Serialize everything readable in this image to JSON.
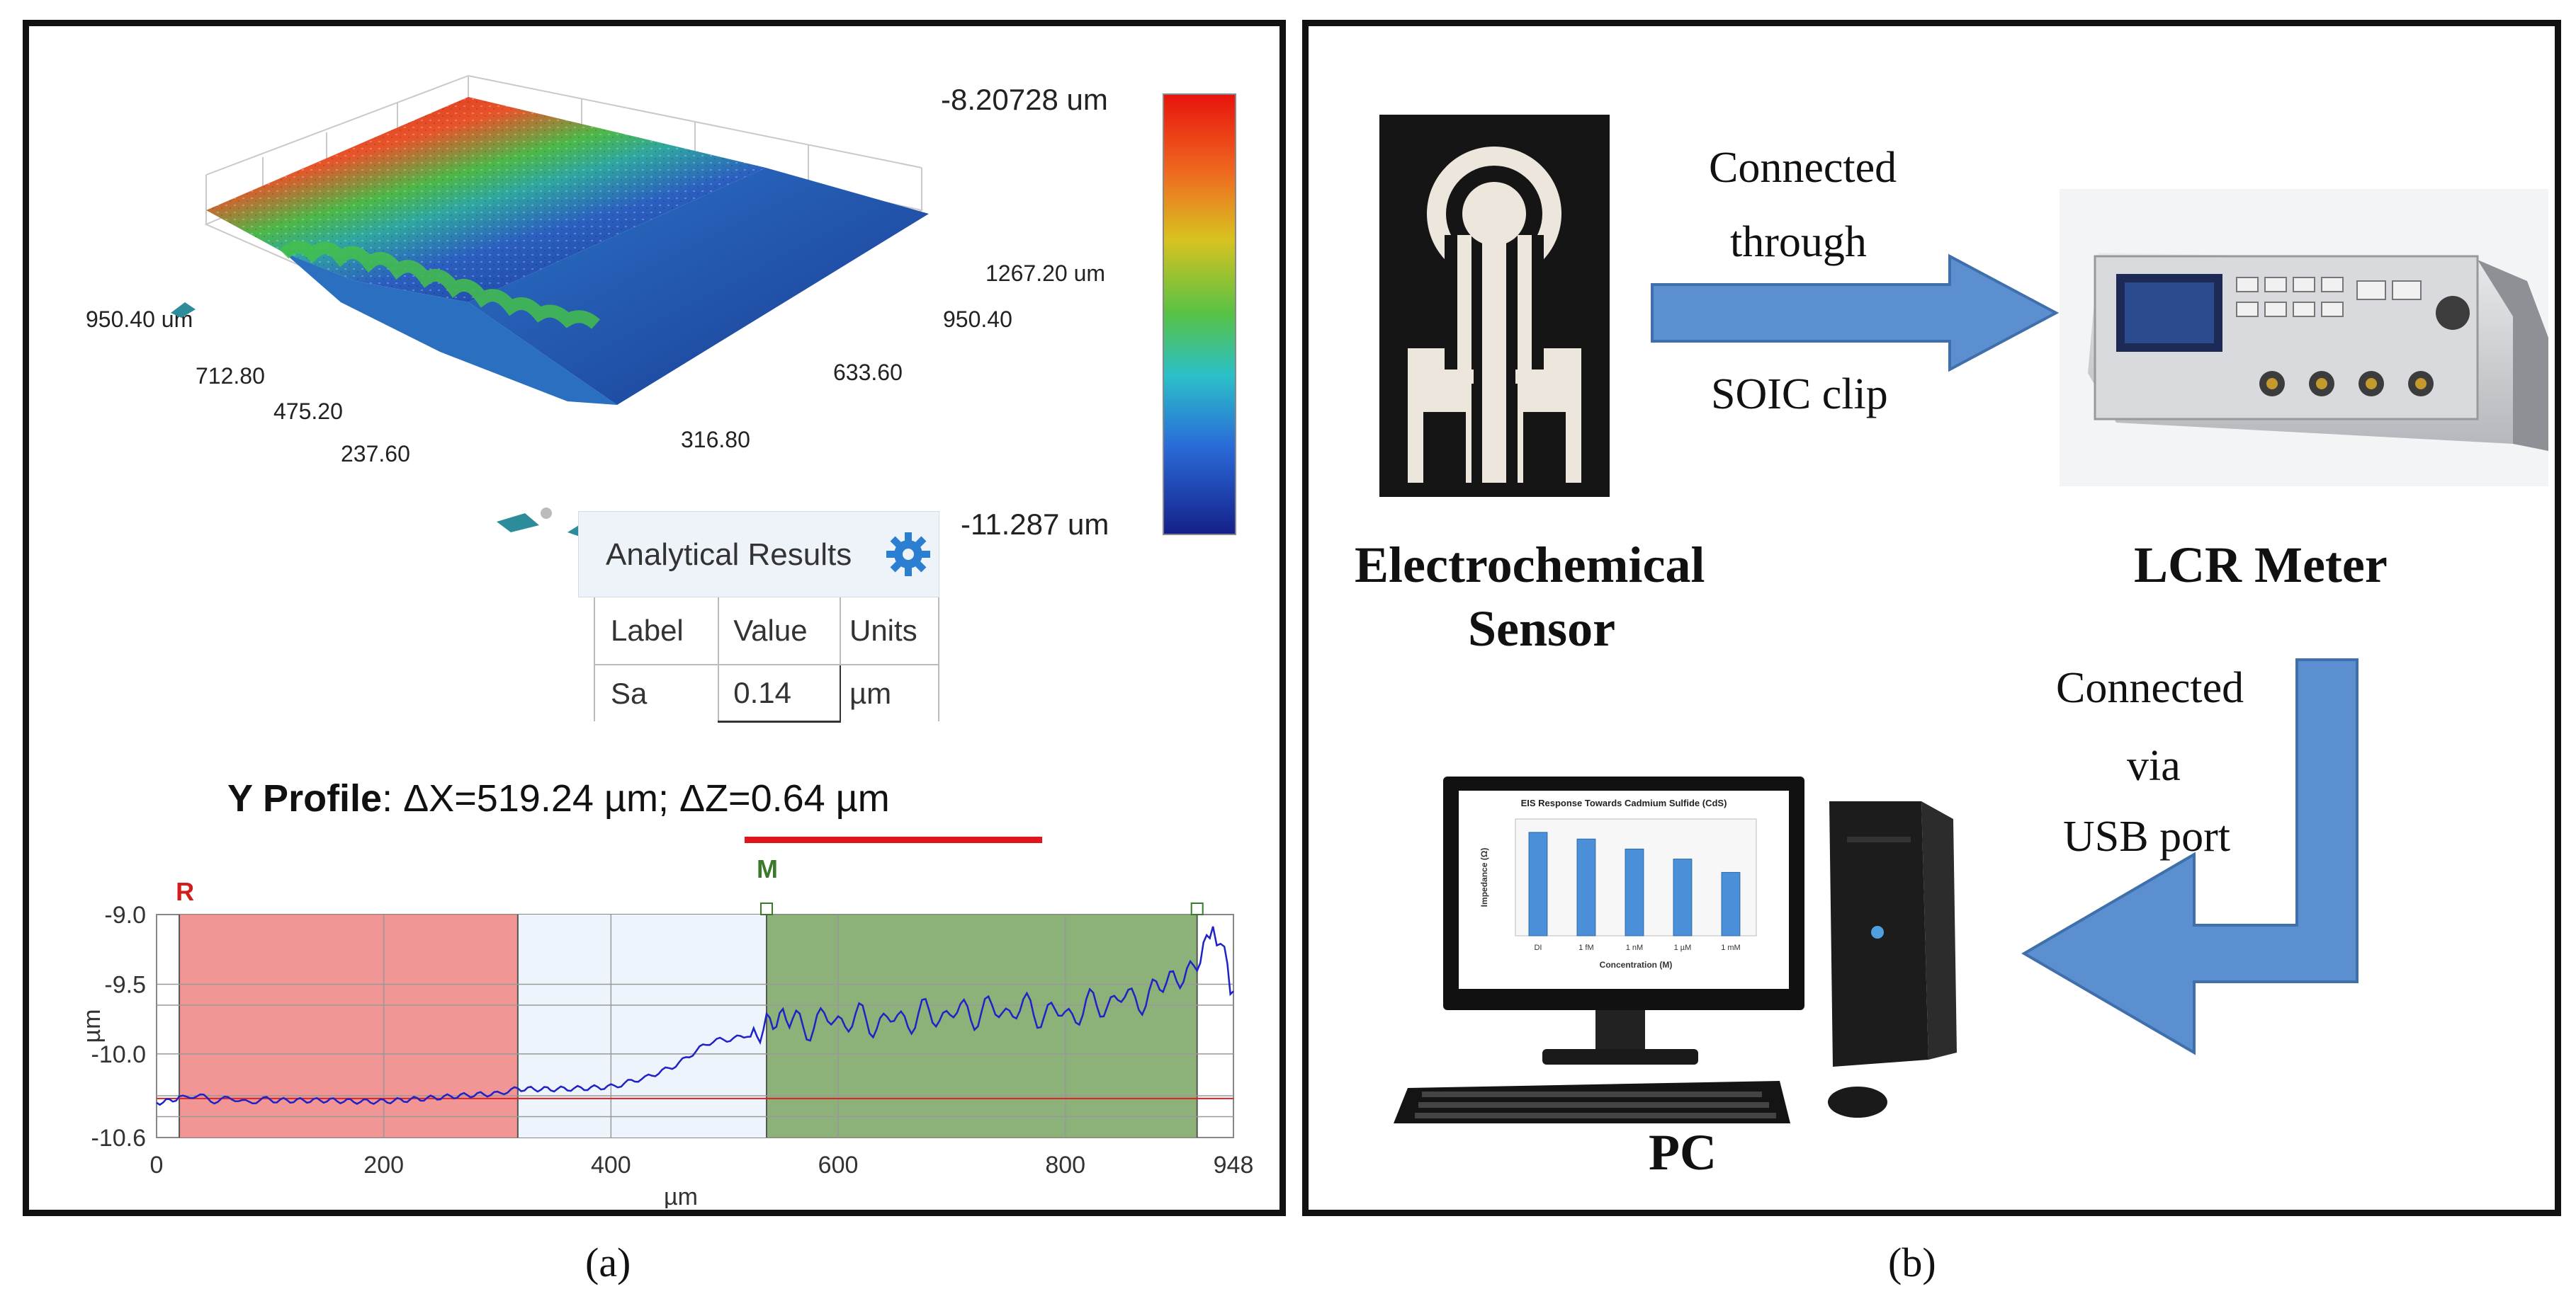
{
  "panel_a": {
    "caption": "(a)",
    "surface": {
      "axis_labels": [
        "950.40 um",
        "712.80",
        "475.20",
        "237.60",
        "316.80",
        "633.60",
        "950.40",
        "1267.20 um"
      ],
      "colorbar_max": "-8.20728 um",
      "colorbar_min": "-11.287 um",
      "colors": {
        "high": "#e02010",
        "mid": "#30b040",
        "low": "#1b3fa8"
      }
    },
    "results": {
      "title": "Analytical Results",
      "headers": [
        "Label",
        "Value",
        "Units"
      ],
      "row": [
        "Sa",
        "0.14",
        "µm"
      ]
    },
    "profile_title": {
      "bold": "Y Profile",
      "rest": ": ΔX=519.24 µm; ΔZ=0.64 µm"
    },
    "chart_data": {
      "type": "line",
      "title": "Y Profile",
      "xlabel": "µm",
      "ylabel": "µm",
      "xlim": [
        0,
        948
      ],
      "ylim": [
        -10.6,
        -9.0
      ],
      "x_ticks": [
        "0",
        "200",
        "400",
        "600",
        "800",
        "948"
      ],
      "y_ticks": [
        "-9.0",
        "-9.5",
        "-10.0",
        "-10.6"
      ],
      "markers": {
        "R": "R",
        "M": "M"
      },
      "regions": [
        {
          "name": "R",
          "from": 20,
          "to": 318,
          "color": "#f08a8a"
        },
        {
          "name": "M",
          "from": 537,
          "to": 916,
          "color": "#7fa86a"
        }
      ],
      "series": [
        {
          "name": "profile",
          "color": "#1e22c8",
          "x": [
            0,
            20,
            60,
            100,
            150,
            200,
            250,
            300,
            318,
            350,
            400,
            430,
            460,
            490,
            520,
            537,
            560,
            600,
            640,
            680,
            720,
            760,
            800,
            840,
            880,
            916,
            930,
            940,
            948
          ],
          "y": [
            -10.35,
            -10.3,
            -10.33,
            -10.34,
            -10.32,
            -10.33,
            -10.32,
            -10.3,
            -10.24,
            -10.25,
            -10.22,
            -10.19,
            -10.05,
            -9.92,
            -9.85,
            -9.78,
            -9.8,
            -9.75,
            -9.77,
            -9.72,
            -9.7,
            -9.68,
            -9.72,
            -9.62,
            -9.58,
            -9.3,
            -9.05,
            -9.35,
            -9.55
          ]
        }
      ]
    }
  },
  "panel_b": {
    "caption": "(b)",
    "sensor_label": [
      "Electrochemical",
      "Sensor"
    ],
    "meter_label": "LCR Meter",
    "pc_label": "PC",
    "arrow1_text": [
      "Connected",
      "through",
      "SOIC clip"
    ],
    "arrow2_text": [
      "Connected",
      "via",
      "USB port"
    ],
    "monitor_chart_title": "EIS Response Towards Cadmium Sulfide (CdS)",
    "monitor_chart_xlabel": "Concentration (M)",
    "monitor_chart_ylabel": "Impedance (Ω)",
    "monitor_chart_categories": [
      "DI",
      "1 fM",
      "1 nM",
      "1 µM",
      "1 mM"
    ],
    "monitor_chart_values": [
      6.2,
      5.8,
      5.2,
      4.6,
      3.8
    ],
    "arrow_color": "#5b8fcf"
  }
}
